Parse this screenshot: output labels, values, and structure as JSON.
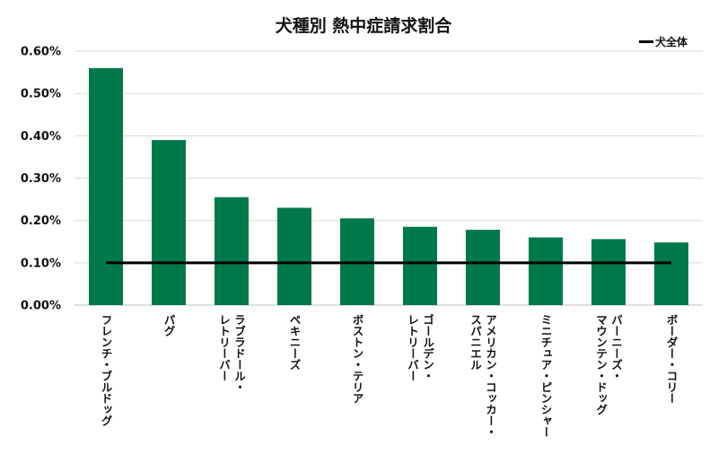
{
  "chart_data": {
    "type": "bar",
    "title": "犬種別 熱中症請求割合",
    "xlabel": "",
    "ylabel": "",
    "ylim": [
      0,
      0.006
    ],
    "yticks": [
      "0.00%",
      "0.10%",
      "0.20%",
      "0.30%",
      "0.40%",
      "0.50%",
      "0.60%"
    ],
    "grid": true,
    "legend_position": "top-right",
    "categories": [
      "フレンチ・ブルドッグ",
      "パグ",
      "ラブラドール・\nレトリーバー",
      "ペキニーズ",
      "ボストン・テリア",
      "ゴールデン・\nレトリーバー",
      "アメリカン・コッカー・\nスパニエル",
      "ミニチュア・ピンシャー",
      "バーニーズ・\nマウンテン・ドッグ",
      "ボーダー・コリー"
    ],
    "series": [
      {
        "type": "bar",
        "color": "#00794A",
        "values": [
          0.0056,
          0.0039,
          0.00255,
          0.0023,
          0.00205,
          0.00185,
          0.00178,
          0.0016,
          0.00156,
          0.00148
        ]
      },
      {
        "name": "犬全体",
        "type": "line",
        "color": "#000000",
        "values": [
          0.001,
          0.001,
          0.001,
          0.001,
          0.001,
          0.001,
          0.001,
          0.001,
          0.001,
          0.001
        ]
      }
    ]
  }
}
